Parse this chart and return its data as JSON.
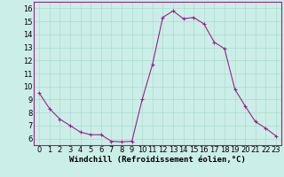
{
  "x": [
    0,
    1,
    2,
    3,
    4,
    5,
    6,
    7,
    8,
    9,
    10,
    11,
    12,
    13,
    14,
    15,
    16,
    17,
    18,
    19,
    20,
    21,
    22,
    23
  ],
  "y": [
    9.5,
    8.3,
    7.5,
    7.0,
    6.5,
    6.3,
    6.3,
    5.8,
    5.75,
    5.8,
    9.0,
    11.7,
    15.3,
    15.8,
    15.2,
    15.3,
    14.8,
    13.4,
    12.9,
    9.8,
    8.5,
    7.3,
    6.8,
    6.2
  ],
  "line_color": "#992288",
  "marker": "+",
  "marker_color": "#992288",
  "bg_color": "#CCEEE8",
  "grid_color": "#AADDCC",
  "xlabel": "Windchill (Refroidissement éolien,°C)",
  "xlabel_fontsize": 6.5,
  "tick_fontsize": 6.0,
  "ylim": [
    5.5,
    16.5
  ],
  "xlim": [
    -0.5,
    23.5
  ],
  "yticks": [
    6,
    7,
    8,
    9,
    10,
    11,
    12,
    13,
    14,
    15,
    16
  ],
  "xticks": [
    0,
    1,
    2,
    3,
    4,
    5,
    6,
    7,
    8,
    9,
    10,
    11,
    12,
    13,
    14,
    15,
    16,
    17,
    18,
    19,
    20,
    21,
    22,
    23
  ]
}
